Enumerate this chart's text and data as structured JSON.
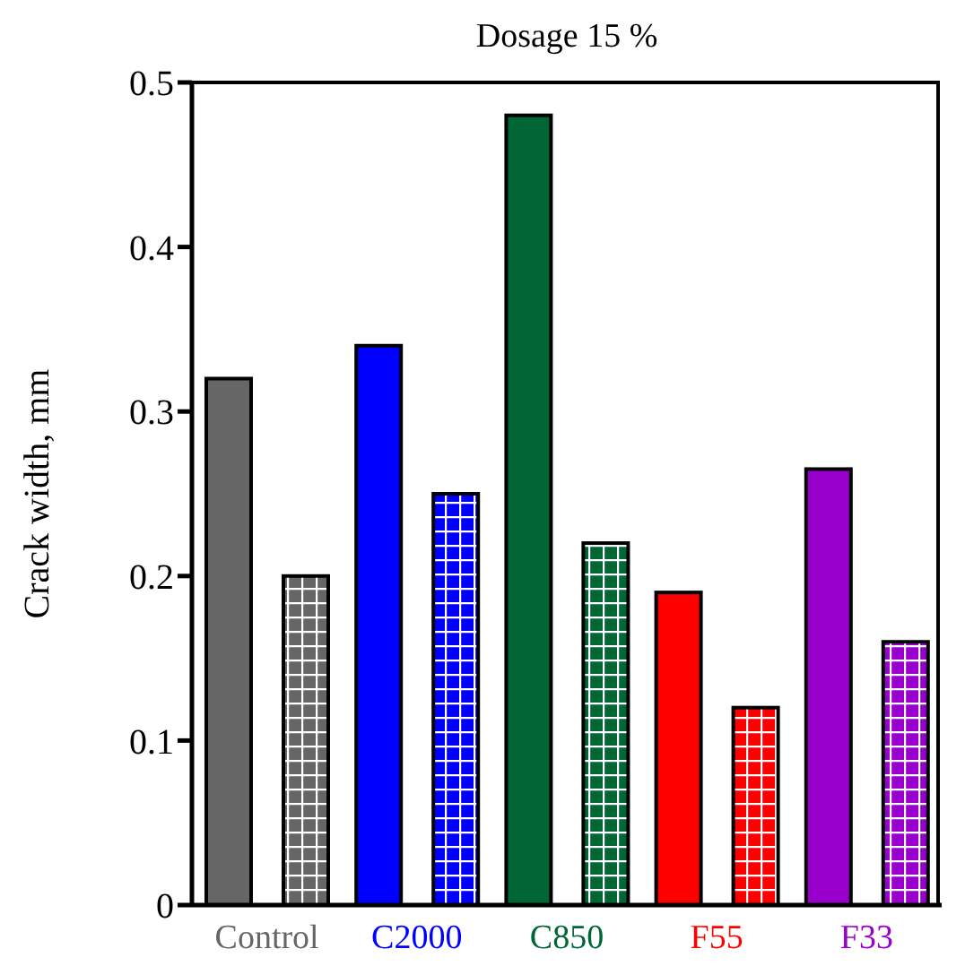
{
  "chart_data": {
    "type": "bar",
    "title": "Dosage 15 %",
    "ylabel": "Crack width, mm",
    "categories": [
      "Control",
      "C2000",
      "C850",
      "F55",
      "F33"
    ],
    "series": [
      {
        "colors": [
          "#666666",
          "#0000ff",
          "#006633",
          "#ff0000",
          "#9900cc"
        ],
        "values": [
          0.32,
          0.34,
          0.48,
          0.19,
          0.265
        ]
      },
      {
        "colors": [
          "#666666",
          "#0000ff",
          "#006633",
          "#ff0000",
          "#9900cc"
        ],
        "values": [
          0.2,
          0.25,
          0.22,
          0.12,
          0.16
        ]
      }
    ],
    "ylim": [
      0,
      0.5
    ],
    "yticks": [
      0,
      0.1,
      0.2,
      0.3,
      0.4,
      0.5
    ],
    "grid": false,
    "legend": false
  }
}
